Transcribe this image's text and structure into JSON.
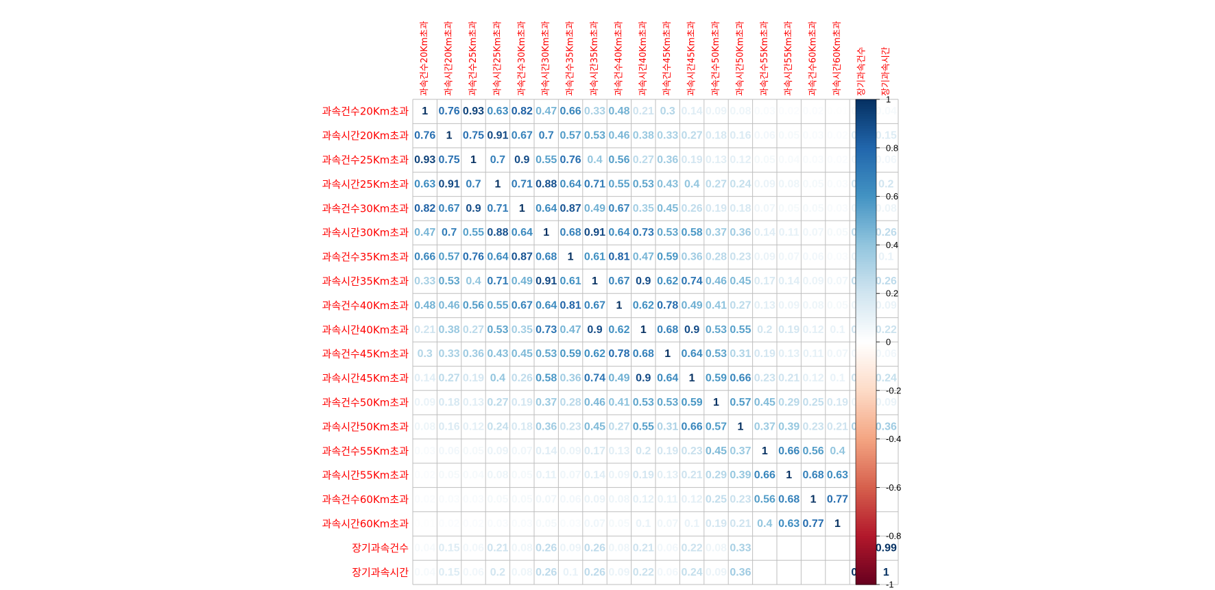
{
  "chart_data": {
    "type": "heatmap",
    "variables": [
      "과속건수20Km초과",
      "과속시간20Km초과",
      "과속건수25Km초과",
      "과속시간25Km초과",
      "과속건수30Km초과",
      "과속시간30Km초과",
      "과속건수35Km초과",
      "과속시간35Km초과",
      "과속건수40Km초과",
      "과속시간40Km초과",
      "과속건수45Km초과",
      "과속시간45Km초과",
      "과속건수50Km초과",
      "과속시간50Km초과",
      "과속건수55Km초과",
      "과속시간55Km초과",
      "과속건수60Km초과",
      "과속시간60Km초과",
      "장기과속건수",
      "장기과속시간"
    ],
    "matrix": [
      [
        1,
        0.76,
        0.93,
        0.63,
        0.82,
        0.47,
        0.66,
        0.33,
        0.48,
        0.21,
        0.3,
        0.14,
        0.09,
        0.08,
        0.03,
        0.02,
        0.02,
        0.01,
        0.04,
        0.04
      ],
      [
        0.76,
        1,
        0.75,
        0.91,
        0.67,
        0.7,
        0.57,
        0.53,
        0.46,
        0.38,
        0.33,
        0.27,
        0.18,
        0.16,
        0.06,
        0.05,
        0.03,
        0.02,
        0.15,
        0.15
      ],
      [
        0.93,
        0.75,
        1,
        0.7,
        0.9,
        0.55,
        0.76,
        0.4,
        0.56,
        0.27,
        0.36,
        0.19,
        0.13,
        0.12,
        0.05,
        0.04,
        0.03,
        0.02,
        0.06,
        0.06
      ],
      [
        0.63,
        0.91,
        0.7,
        1,
        0.71,
        0.88,
        0.64,
        0.71,
        0.55,
        0.53,
        0.43,
        0.4,
        0.27,
        0.24,
        0.09,
        0.08,
        0.05,
        0.03,
        0.21,
        0.2
      ],
      [
        0.82,
        0.67,
        0.9,
        0.71,
        1,
        0.64,
        0.87,
        0.49,
        0.67,
        0.35,
        0.45,
        0.26,
        0.19,
        0.18,
        0.07,
        0.05,
        0.05,
        0.03,
        0.08,
        0.08
      ],
      [
        0.47,
        0.7,
        0.55,
        0.88,
        0.64,
        1,
        0.68,
        0.91,
        0.64,
        0.73,
        0.53,
        0.58,
        0.37,
        0.36,
        0.14,
        0.11,
        0.07,
        0.05,
        0.26,
        0.26
      ],
      [
        0.66,
        0.57,
        0.76,
        0.64,
        0.87,
        0.68,
        1,
        0.61,
        0.81,
        0.47,
        0.59,
        0.36,
        0.28,
        0.23,
        0.09,
        0.07,
        0.06,
        0.03,
        0.09,
        0.1
      ],
      [
        0.33,
        0.53,
        0.4,
        0.71,
        0.49,
        0.91,
        0.61,
        1,
        0.67,
        0.9,
        0.62,
        0.74,
        0.46,
        0.45,
        0.17,
        0.14,
        0.09,
        0.07,
        0.26,
        0.26
      ],
      [
        0.48,
        0.46,
        0.56,
        0.55,
        0.67,
        0.64,
        0.81,
        0.67,
        1,
        0.62,
        0.78,
        0.49,
        0.41,
        0.27,
        0.13,
        0.09,
        0.08,
        0.05,
        0.08,
        0.09
      ],
      [
        0.21,
        0.38,
        0.27,
        0.53,
        0.35,
        0.73,
        0.47,
        0.9,
        0.62,
        1,
        0.68,
        0.9,
        0.53,
        0.55,
        0.2,
        0.19,
        0.12,
        0.1,
        0.21,
        0.22
      ],
      [
        0.3,
        0.33,
        0.36,
        0.43,
        0.45,
        0.53,
        0.59,
        0.62,
        0.78,
        0.68,
        1,
        0.64,
        0.53,
        0.31,
        0.19,
        0.13,
        0.11,
        0.07,
        0.06,
        0.06
      ],
      [
        0.14,
        0.27,
        0.19,
        0.4,
        0.26,
        0.58,
        0.36,
        0.74,
        0.49,
        0.9,
        0.64,
        1,
        0.59,
        0.66,
        0.23,
        0.21,
        0.12,
        0.1,
        0.22,
        0.24
      ],
      [
        0.09,
        0.18,
        0.13,
        0.27,
        0.19,
        0.37,
        0.28,
        0.46,
        0.41,
        0.53,
        0.53,
        0.59,
        1,
        0.57,
        0.45,
        0.29,
        0.25,
        0.19,
        0.08,
        0.09
      ],
      [
        0.08,
        0.16,
        0.12,
        0.24,
        0.18,
        0.36,
        0.23,
        0.45,
        0.27,
        0.55,
        0.31,
        0.66,
        0.57,
        1,
        0.37,
        0.39,
        0.23,
        0.21,
        0.33,
        0.36
      ],
      [
        0.03,
        0.06,
        0.05,
        0.09,
        0.07,
        0.14,
        0.09,
        0.17,
        0.13,
        0.2,
        0.19,
        0.23,
        0.45,
        0.37,
        1,
        0.66,
        0.56,
        0.4,
        null,
        null
      ],
      [
        0.02,
        0.05,
        0.04,
        0.08,
        0.05,
        0.11,
        0.07,
        0.14,
        0.09,
        0.19,
        0.13,
        0.21,
        0.29,
        0.39,
        0.66,
        1,
        0.68,
        0.63,
        null,
        null
      ],
      [
        0.02,
        0.03,
        0.03,
        0.05,
        0.05,
        0.07,
        0.06,
        0.09,
        0.08,
        0.12,
        0.11,
        0.12,
        0.25,
        0.23,
        0.56,
        0.68,
        1,
        0.77,
        null,
        null
      ],
      [
        0.01,
        0.02,
        0.02,
        0.03,
        0.03,
        0.05,
        0.03,
        0.07,
        0.05,
        0.1,
        0.07,
        0.1,
        0.19,
        0.21,
        0.4,
        0.63,
        0.77,
        1,
        null,
        null
      ],
      [
        0.04,
        0.15,
        0.06,
        0.21,
        0.08,
        0.26,
        0.09,
        0.26,
        0.08,
        0.21,
        0.06,
        0.22,
        0.08,
        0.33,
        null,
        null,
        null,
        null,
        1,
        0.99
      ],
      [
        0.04,
        0.15,
        0.06,
        0.2,
        0.08,
        0.26,
        0.1,
        0.26,
        0.09,
        0.22,
        0.06,
        0.24,
        0.09,
        0.36,
        null,
        null,
        null,
        null,
        0.99,
        1
      ]
    ],
    "colorbar": {
      "range": [
        -1,
        1
      ],
      "ticks": [
        1,
        0.8,
        0.6,
        0.4,
        0.2,
        0,
        -0.2,
        -0.4,
        -0.6,
        -0.8,
        -1
      ],
      "tick_labels": [
        "1",
        "0.8",
        "0.6",
        "0.4",
        "0.2",
        "0",
        "-0.2",
        "-0.4",
        "-0.6",
        "-0.8",
        "-1"
      ],
      "colors": {
        "strong_negative": "#67001f",
        "negative": "#b2182b",
        "mid_negative": "#d6604d",
        "light_negative": "#f4a582",
        "pale_negative": "#fddbc7",
        "zero": "#ffffff",
        "pale_positive": "#d1e5f0",
        "light_positive": "#92c5de",
        "mid_positive": "#4393c3",
        "positive": "#2166ac",
        "strong_positive": "#053061"
      }
    },
    "label_color": "#ff0000",
    "grid_color": "#bebebe",
    "legend_position": "right"
  }
}
